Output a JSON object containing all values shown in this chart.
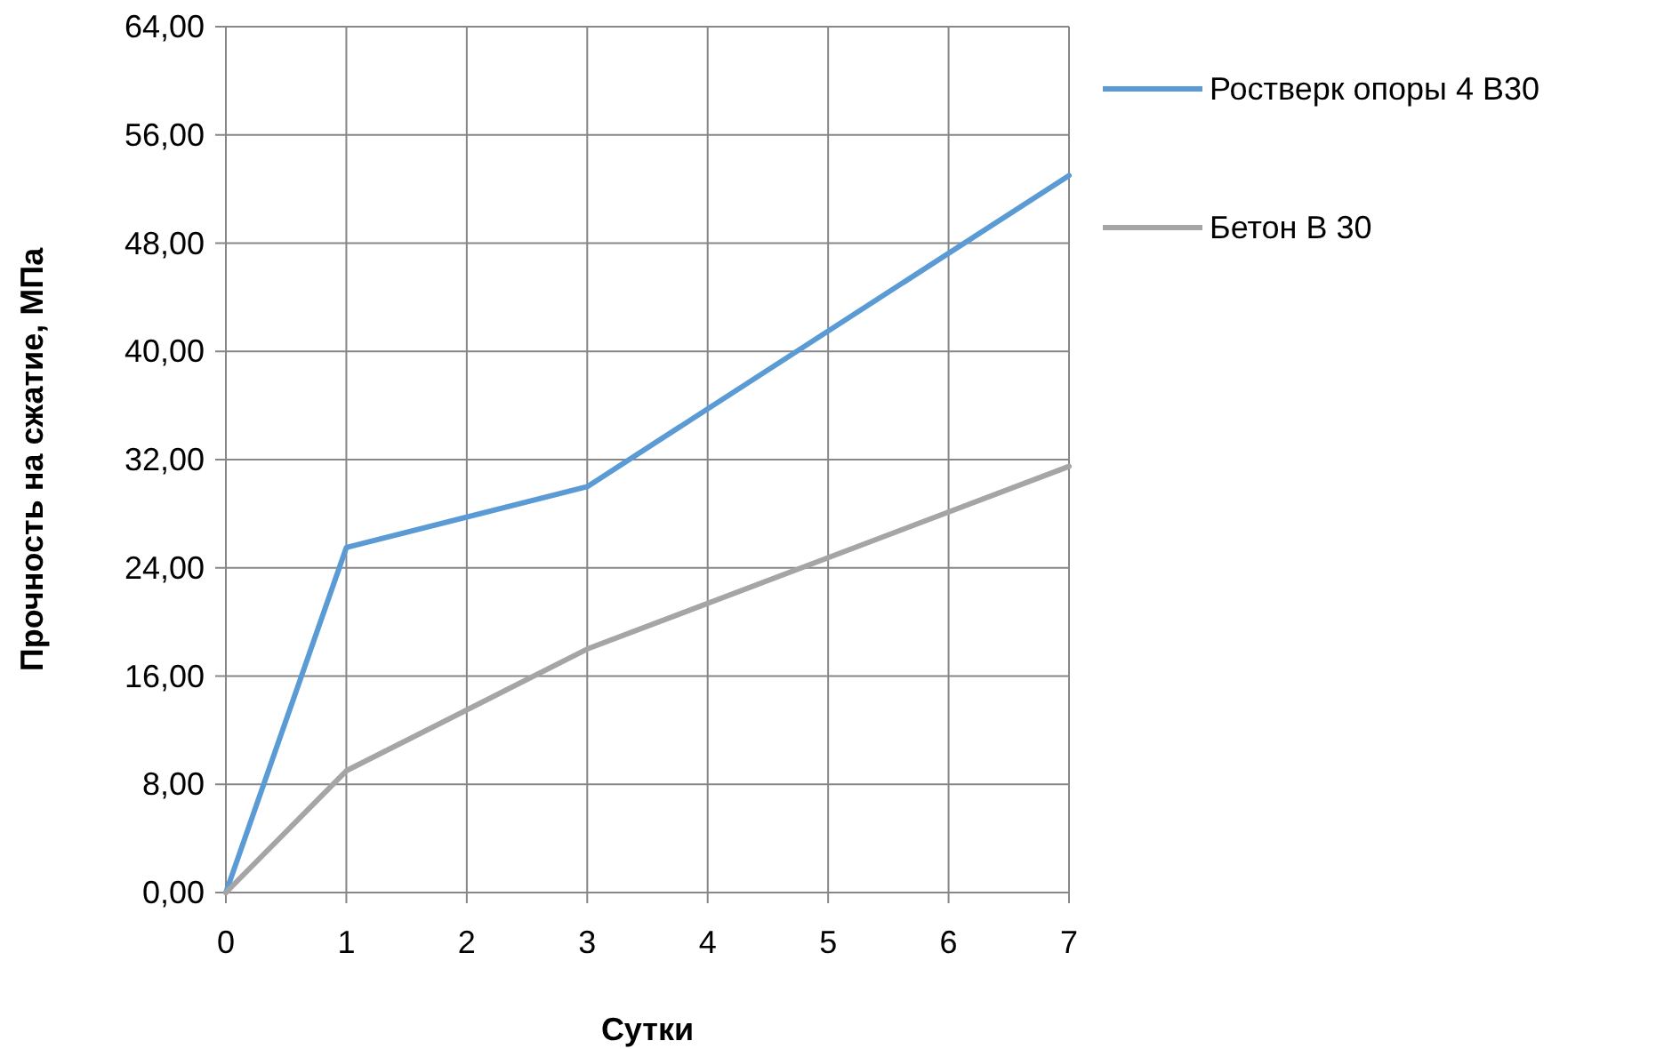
{
  "chart_data": {
    "type": "line",
    "xlabel": "Сутки",
    "ylabel": "Прочность на сжатие, МПа",
    "x": [
      0,
      1,
      3,
      7
    ],
    "series": [
      {
        "name": "Ростверк опоры 4 В30",
        "color": "#5b9bd5",
        "values": [
          0,
          25.5,
          30,
          53
        ]
      },
      {
        "name": "Бетон В 30",
        "color": "#a5a5a5",
        "values": [
          0,
          9,
          18,
          31.5
        ]
      }
    ],
    "xlim": [
      0,
      7
    ],
    "xticks": [
      0,
      1,
      2,
      3,
      4,
      5,
      6,
      7
    ],
    "ylim": [
      0,
      64
    ],
    "yticks": [
      {
        "value": 0,
        "label": "0,00"
      },
      {
        "value": 8,
        "label": "8,00"
      },
      {
        "value": 16,
        "label": "16,00"
      },
      {
        "value": 24,
        "label": "24,00"
      },
      {
        "value": 32,
        "label": "32,00"
      },
      {
        "value": 40,
        "label": "40,00"
      },
      {
        "value": 48,
        "label": "48,00"
      },
      {
        "value": 56,
        "label": "56,00"
      },
      {
        "value": 64,
        "label": "64,00"
      }
    ],
    "grid": true,
    "legend": "top right",
    "marker": "none",
    "line_style": "solid"
  }
}
